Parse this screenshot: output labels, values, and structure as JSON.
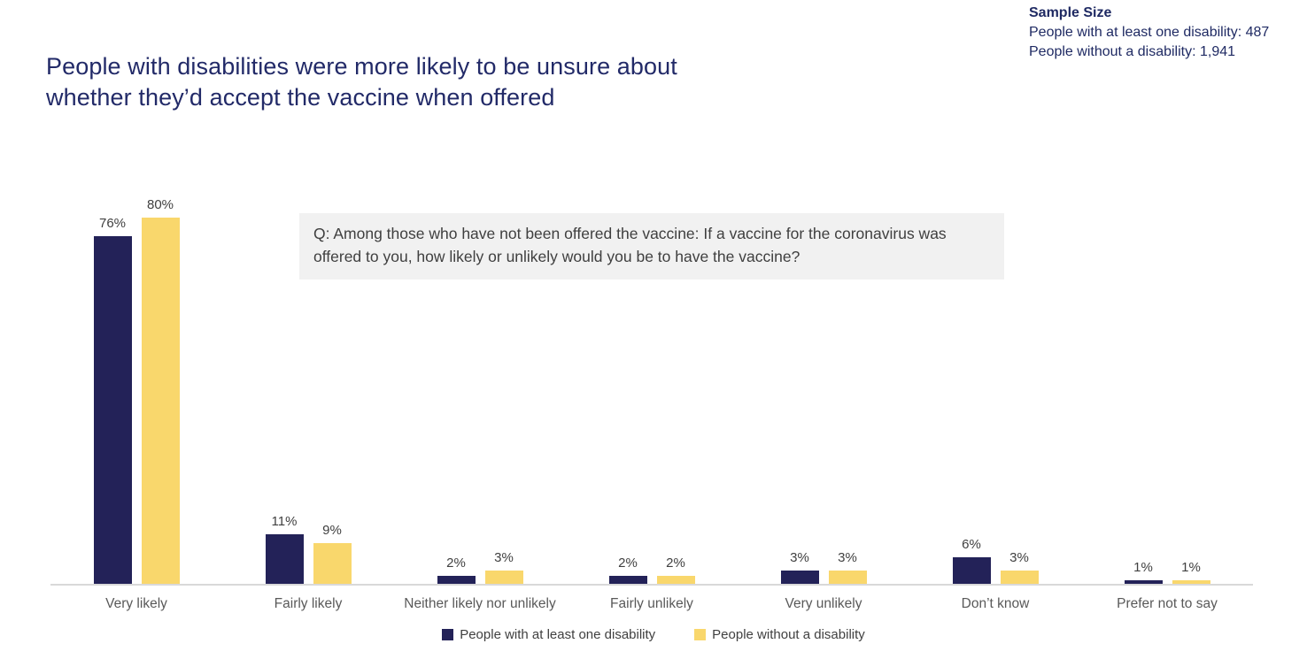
{
  "page": {
    "title_line1": "People with disabilities were more likely to be unsure about",
    "title_line2": "whether they’d accept the vaccine when offered"
  },
  "sample_size": {
    "heading": "Sample Size",
    "line1": "People with at least one disability: 487",
    "line2": "People without a disability: 1,941"
  },
  "question": {
    "text": "Q: Among those who have not been offered the vaccine: If a vaccine for the coronavirus was offered to you, how likely or unlikely would you be to have the vaccine?"
  },
  "colors": {
    "title_navy": "#222A68",
    "series1_navy": "#232258",
    "series2_yellow": "#F9D76C",
    "question_box_bg": "#F1F1F1",
    "axis_line": "#D9D9D9",
    "label_gray": "#404040",
    "category_gray": "#595959"
  },
  "chart_data": {
    "type": "bar",
    "title": "People with disabilities were more likely to be unsure about whether they’d accept the vaccine when offered",
    "categories": [
      "Very likely",
      "Fairly likely",
      "Neither likely nor unlikely",
      "Fairly unlikely",
      "Very unlikely",
      "Don’t know",
      "Prefer not to say"
    ],
    "series": [
      {
        "name": "People with at least one disability",
        "color": "#232258",
        "values": [
          76,
          11,
          2,
          2,
          3,
          6,
          1
        ],
        "labels": [
          "76%",
          "11%",
          "2%",
          "2%",
          "3%",
          "6%",
          "1%"
        ]
      },
      {
        "name": "People without a disability",
        "color": "#F9D76C",
        "values": [
          80,
          9,
          3,
          2,
          3,
          3,
          1
        ],
        "labels": [
          "80%",
          "9%",
          "3%",
          "2%",
          "3%",
          "3%",
          "1%"
        ]
      }
    ],
    "xlabel": "",
    "ylabel": "",
    "ylim": [
      0,
      80
    ],
    "value_label_suffix": "%",
    "grid": false,
    "legend_position": "bottom"
  }
}
